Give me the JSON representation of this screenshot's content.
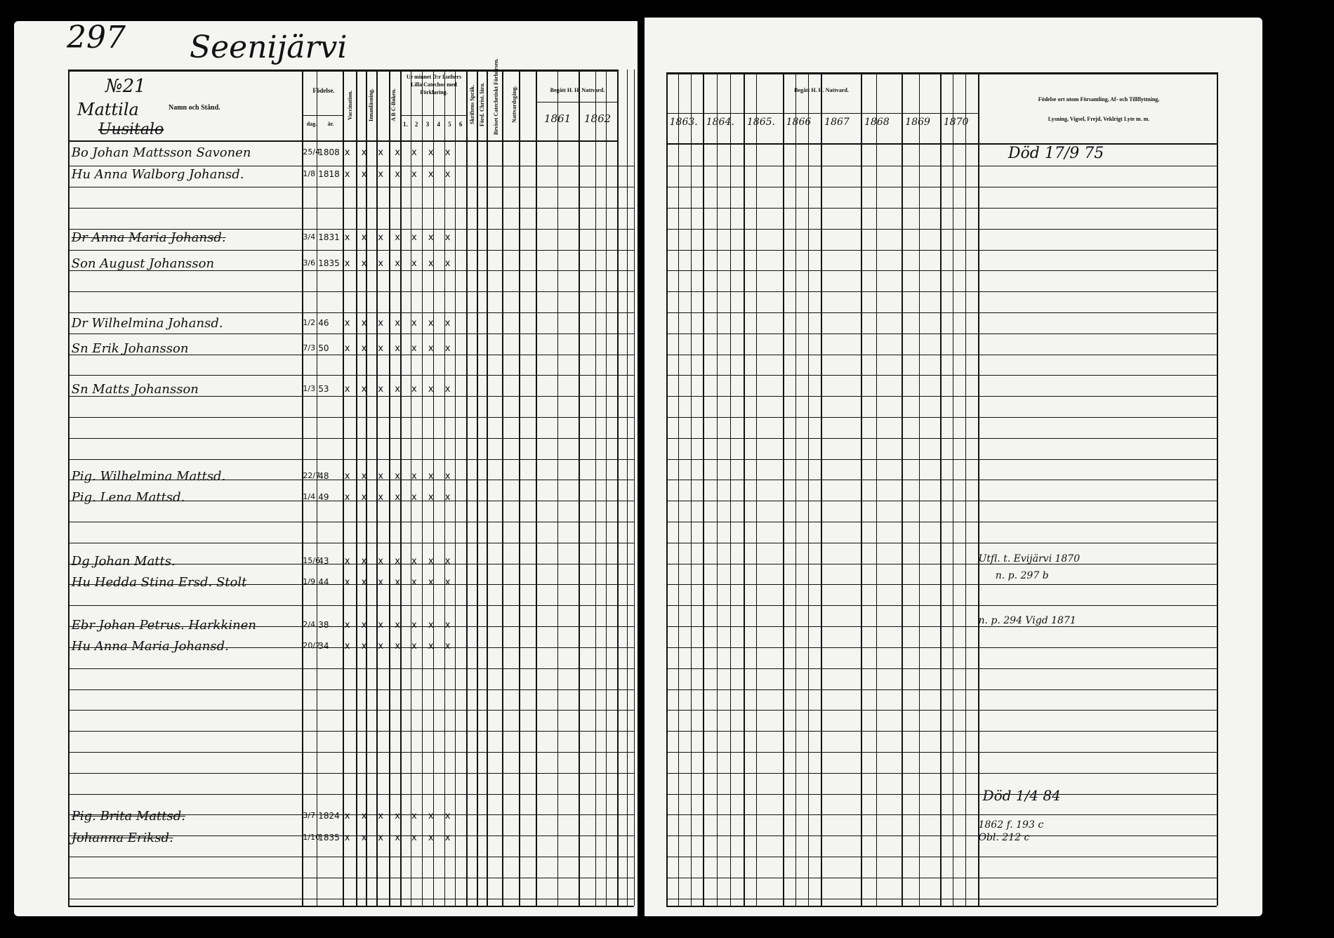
{
  "header": {
    "page_number": "297",
    "village": "Seenijärvi",
    "household_no": "№21",
    "farm_name": "Mattila",
    "farm_status": "Uusitalo"
  },
  "left_columns": {
    "name": "Namn och Stånd.",
    "birth": "Födelse.",
    "birth_day": "dag.",
    "birth_year": "år.",
    "vaccination": "Vaccination.",
    "reading": "Innanläsning.",
    "abc": "A B C-Boken.",
    "catechism": "Ur minnet D:r Luthers Lilla Catechos med Förklaring.",
    "catechism_parts": [
      "1.",
      "2",
      "3",
      "4",
      "5",
      "6"
    ],
    "scripture": "Skriftens Språk.",
    "christianity": "Förd. Christ. lära.",
    "confirmation": "Beviset Catechetiskt Förhörsen.",
    "communion": "Nattvardsgång.",
    "communion_header": "Begått H. H. Nattvard.",
    "years": [
      "1861",
      "1862"
    ]
  },
  "right_columns": {
    "communion_header": "Begått H. H. Nattvard.",
    "years": [
      "1863.",
      "1864.",
      "1865.",
      "1866",
      "1867",
      "1868",
      "1869",
      "1870"
    ],
    "remarks_header_1": "Födelse ort utom Församling, Af- och Tillflyttning,",
    "remarks_header_2": "Lysning, Vigsel, Frejd, Veklrigt Lyte m. m."
  },
  "entries": [
    {
      "name": "Bo Johan Mattsson Savonen",
      "day": "25/4",
      "year": "1808",
      "marks": "x x x x x x x",
      "struck": false
    },
    {
      "name": "Hu Anna Walborg Johansd.",
      "day": "1/8",
      "year": "1818",
      "marks": "x x x x x x x",
      "struck": false
    },
    {
      "name": "Dr Anna Maria Johansd.",
      "day": "3/4",
      "year": "1831",
      "marks": "x x x x x x x",
      "struck": true
    },
    {
      "name": "Son August Johansson",
      "day": "3/6",
      "year": "1835",
      "marks": "x x x x x x x",
      "struck": false
    },
    {
      "name": "Dr Wilhelmina Johansd.",
      "day": "1/2",
      "year": "46",
      "marks": "x x x x x x x",
      "struck": false
    },
    {
      "name": "Sn Erik Johansson",
      "day": "7/3",
      "year": "50",
      "marks": "x x x x x x x",
      "struck": false
    },
    {
      "name": "Sn Matts Johansson",
      "day": "1/3",
      "year": "53",
      "marks": "x x x x x x x",
      "struck": false
    },
    {
      "name": "Pig. Wilhelmina Mattsd.",
      "day": "22/7",
      "year": "48",
      "marks": "x x x x x x x",
      "struck": false
    },
    {
      "name": "Pig. Lena Mattsd.",
      "day": "1/4",
      "year": "49",
      "marks": "x x x x x x x",
      "struck": false
    },
    {
      "name": "Dg Johan Matts.",
      "day": "15/6",
      "year": "43",
      "marks": "x x x x x x x",
      "struck": false
    },
    {
      "name": "Hu Hedda Stina Ersd. Stolt",
      "day": "1/9",
      "year": "44",
      "marks": "x x x x x x x",
      "struck": false
    },
    {
      "name": "Ebr Johan Petrus. Harkkinen",
      "day": "2/4",
      "year": "38",
      "marks": "x x x x x x x",
      "struck": false
    },
    {
      "name": "Hu Anna Maria Johansd.",
      "day": "20/2",
      "year": "34",
      "marks": "x x x x x x x",
      "struck": false
    },
    {
      "name": "Pig. Brita Mattsd.",
      "day": "3/7",
      "year": "1824",
      "marks": "x x x x x x x",
      "struck": true
    },
    {
      "name": "Johanna Eriksd.",
      "day": "1/10",
      "year": "1835",
      "marks": "x x x x x x x",
      "struck": true
    }
  ],
  "remarks": [
    "Död 17/9 75",
    "Utfl. t. Evijärvi 1870",
    "n. p. 297 b",
    "n. p. 294 Vigd 1871",
    "Död 1/4 84",
    "1862 f. 193 c",
    "Obl. 212 c"
  ],
  "colors": {
    "paper": "#f4f4f2",
    "ink": "#111111",
    "background": "#000000"
  }
}
